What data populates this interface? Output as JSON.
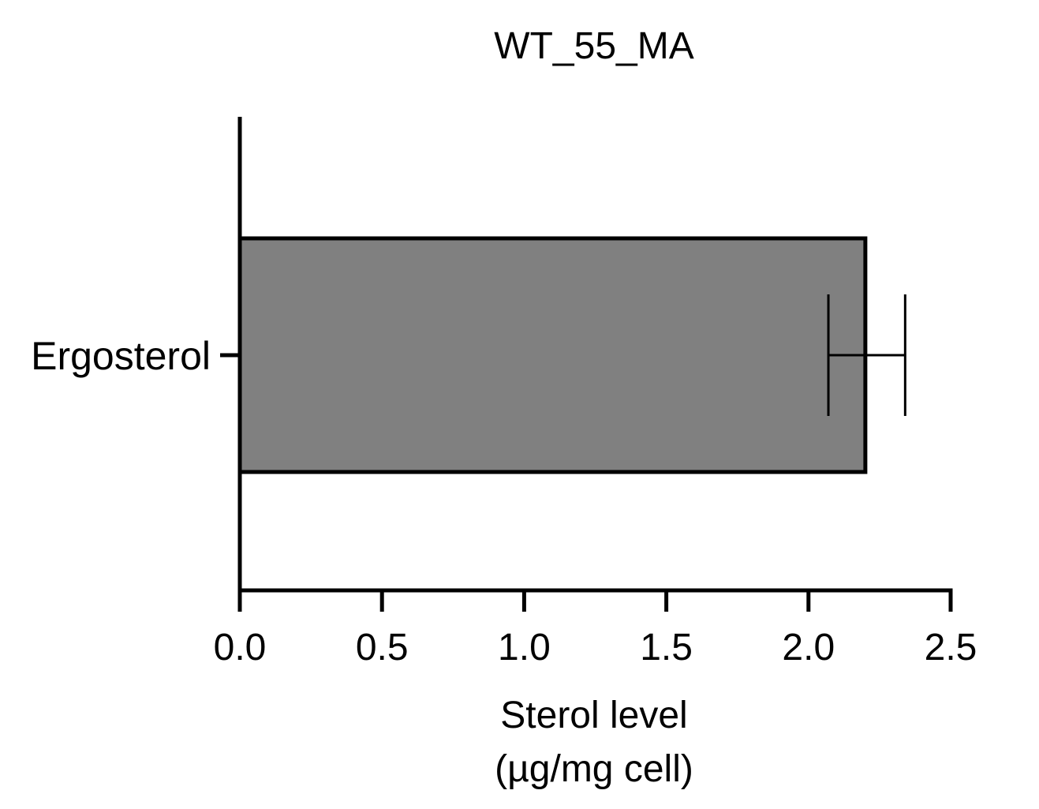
{
  "chart_data": {
    "type": "bar",
    "orientation": "horizontal",
    "title": "WT_55_MA",
    "categories": [
      "Ergosterol"
    ],
    "series": [
      {
        "values": [
          2.2
        ],
        "error_low": [
          2.07
        ],
        "error_high": [
          2.34
        ],
        "color": "#808080"
      }
    ],
    "xlabel": "Sterol level",
    "xlabel_unit": "(µg/mg cell)",
    "xlim": [
      0,
      2.5
    ],
    "xticks": [
      "0.0",
      "0.5",
      "1.0",
      "1.5",
      "2.0",
      "2.5"
    ],
    "grid": false,
    "legend": "none"
  }
}
